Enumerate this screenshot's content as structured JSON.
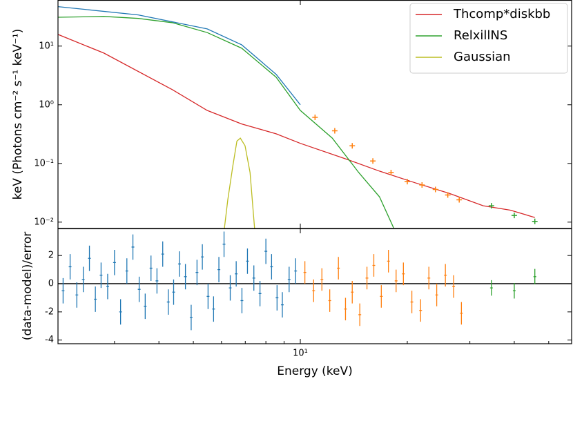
{
  "chart_data": [
    {
      "type": "line",
      "xlog": true,
      "ylog": true,
      "ylabel": "keV (Photons cm⁻² s⁻¹ keV⁻¹)",
      "xlim": [
        2.08,
        58
      ],
      "ylim": [
        0.0078,
        61
      ],
      "xticks": [
        10
      ],
      "yticks": [
        {
          "value": 0.01,
          "label": "10⁻²"
        },
        {
          "value": 0.1,
          "label": "10⁻¹"
        },
        {
          "value": 1,
          "label": "10⁰"
        },
        {
          "value": 10,
          "label": "10¹"
        }
      ],
      "legend": "upper right",
      "series": [
        {
          "name": "Thcomp*diskbb",
          "color": "#d62728",
          "x": [
            2.08,
            2.8,
            4.37,
            5.47,
            6.84,
            8.55,
            10,
            13.4,
            16.7,
            21,
            26.2,
            32.7,
            39,
            45.7
          ],
          "values": [
            15.8,
            7.6,
            1.8,
            0.8,
            0.47,
            0.32,
            0.22,
            0.12,
            0.074,
            0.047,
            0.031,
            0.019,
            0.016,
            0.012
          ]
        },
        {
          "name": "RelxillNS",
          "color": "#2ca02c",
          "x": [
            2.08,
            2.8,
            3.5,
            4.37,
            5.47,
            6.84,
            8.55,
            10,
            12.3,
            14.6,
            16.7,
            18.3
          ],
          "values": [
            31,
            32,
            29.6,
            25,
            17,
            9.2,
            2.95,
            0.8,
            0.27,
            0.07,
            0.027,
            0.008
          ]
        },
        {
          "name": "Gaussian",
          "color": "#bcbd22",
          "x": [
            6.06,
            6.25,
            6.46,
            6.63,
            6.78,
            6.99,
            7.22,
            7.48
          ],
          "values": [
            0.005,
            0.024,
            0.092,
            0.24,
            0.27,
            0.2,
            0.07,
            0.005
          ]
        },
        {
          "color": "#1f77b4",
          "x": [
            2.08,
            3.5,
            5.47,
            6.84,
            8.55,
            10
          ],
          "values": [
            47,
            34,
            19.6,
            10.5,
            3.3,
            1.0
          ]
        },
        {
          "color": "#ff7f0e",
          "marker": true,
          "x": [
            11,
            12.5,
            14,
            16,
            18,
            20,
            22,
            24,
            26,
            28
          ],
          "values": [
            0.61,
            0.36,
            0.2,
            0.11,
            0.07,
            0.049,
            0.043,
            0.036,
            0.029,
            0.024
          ]
        },
        {
          "color": "#2ca02c",
          "marker": true,
          "x": [
            34.5,
            40,
            45.7
          ],
          "values": [
            0.019,
            0.013,
            0.0103
          ]
        }
      ]
    },
    {
      "type": "errorbar",
      "xlog": true,
      "xlabel": "Energy (keV)",
      "ylabel": "(data-model)/error",
      "xlim": [
        2.08,
        58
      ],
      "ylim": [
        -4.26,
        3.92
      ],
      "xticks": [
        {
          "value": 10,
          "label": "10¹"
        }
      ],
      "xminorticks": [
        3,
        4,
        5,
        6,
        7,
        8,
        9,
        20,
        30,
        40,
        50
      ],
      "yticks": [
        -4,
        -2,
        0,
        2
      ],
      "reference_line": 0,
      "series": [
        {
          "color": "#1f77b4",
          "x": [
            2.15,
            2.25,
            2.35,
            2.45,
            2.55,
            2.65,
            2.75,
            2.87,
            3.0,
            3.12,
            3.25,
            3.38,
            3.52,
            3.66,
            3.8,
            3.95,
            4.1,
            4.25,
            4.4,
            4.57,
            4.75,
            4.93,
            5.12,
            5.3,
            5.5,
            5.7,
            5.9,
            6.1,
            6.35,
            6.6,
            6.85,
            7.1,
            7.4,
            7.7,
            8.0,
            8.3,
            8.6,
            8.9,
            9.3,
            9.7
          ],
          "values": [
            -0.5,
            1.2,
            -0.8,
            0.3,
            1.8,
            -1.1,
            0.6,
            -0.2,
            1.5,
            -2.0,
            0.9,
            2.6,
            -0.4,
            -1.6,
            1.1,
            0.2,
            2.1,
            -1.3,
            -0.6,
            1.4,
            0.5,
            -2.4,
            0.8,
            1.9,
            -0.9,
            -1.8,
            1.0,
            2.8,
            -0.3,
            0.7,
            -1.2,
            1.6,
            0.4,
            -0.7,
            2.3,
            1.2,
            -1.0,
            -1.5,
            0.3,
            0.9
          ],
          "errors": [
            0.9,
            0.9,
            0.9,
            0.9,
            0.9,
            0.9,
            0.9,
            0.9,
            0.9,
            0.9,
            0.9,
            0.9,
            0.9,
            0.9,
            0.9,
            0.9,
            0.9,
            0.9,
            0.9,
            0.9,
            0.9,
            0.9,
            0.9,
            0.9,
            0.9,
            0.9,
            0.9,
            0.9,
            0.9,
            0.9,
            0.9,
            0.9,
            0.9,
            0.9,
            0.9,
            0.9,
            0.9,
            0.9,
            0.9,
            0.9
          ]
        },
        {
          "color": "#ff7f0e",
          "x": [
            10.3,
            10.9,
            11.5,
            12.1,
            12.8,
            13.4,
            14.0,
            14.7,
            15.4,
            16.1,
            16.9,
            17.7,
            18.6,
            19.5,
            20.6,
            21.8,
            23.0,
            24.2,
            25.6,
            27.0,
            28.4
          ],
          "values": [
            0.8,
            -0.5,
            0.3,
            -1.2,
            1.1,
            -1.8,
            -0.6,
            -2.2,
            0.4,
            1.3,
            -0.9,
            1.6,
            0.2,
            0.7,
            -1.3,
            -1.9,
            0.4,
            -0.8,
            0.6,
            -0.2,
            -2.1
          ],
          "errors": [
            0.8,
            0.8,
            0.8,
            0.8,
            0.8,
            0.8,
            0.8,
            0.8,
            0.8,
            0.8,
            0.8,
            0.8,
            0.8,
            0.8,
            0.8,
            0.8,
            0.8,
            0.8,
            0.8,
            0.8,
            0.8
          ]
        },
        {
          "color": "#2ca02c",
          "x": [
            34.5,
            40,
            45.7
          ],
          "values": [
            -0.3,
            -0.5,
            0.5
          ],
          "errors": [
            0.55,
            0.55,
            0.55
          ]
        }
      ]
    }
  ]
}
